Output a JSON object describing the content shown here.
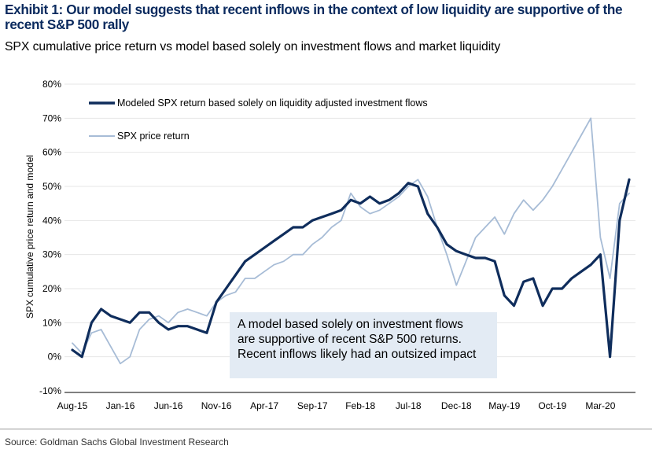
{
  "header": {
    "title": "Exhibit 1: Our model suggests that recent inflows in the context of low liquidity are supportive of the recent S&P 500 rally",
    "subtitle": "SPX cumulative price return vs model based solely on investment flows and market liquidity"
  },
  "footer": {
    "source": "Source: Goldman Sachs Global Investment Research"
  },
  "annotation": {
    "lines": [
      "A model based solely on investment flows",
      "are supportive of recent S&P 500 returns.",
      "Recent inflows likely had an outsized impact"
    ]
  },
  "colors": {
    "model": "#0f2d5c",
    "spx": "#a7bcd6",
    "annotation_bg": "#e3ebf4",
    "title": "#0a2a5e"
  },
  "chart_data": {
    "type": "line",
    "title": "",
    "xlabel": "",
    "ylabel": "SPX cumulative price return and model",
    "ylim": [
      -10,
      80
    ],
    "y_ticks": [
      "-10%",
      "0%",
      "10%",
      "20%",
      "30%",
      "40%",
      "50%",
      "60%",
      "70%",
      "80%"
    ],
    "y_tick_values": [
      -10,
      0,
      10,
      20,
      30,
      40,
      50,
      60,
      70,
      80
    ],
    "x_tick_labels": [
      "Aug-15",
      "Jan-16",
      "Jun-16",
      "Nov-16",
      "Apr-17",
      "Sep-17",
      "Feb-18",
      "Jul-18",
      "Dec-18",
      "May-19",
      "Oct-19",
      "Mar-20"
    ],
    "x_range": [
      "Aug-15",
      "Jun-20"
    ],
    "grid": "horizontal",
    "legend": "top-left",
    "series": [
      {
        "name": "Modeled SPX return based solely on liquidity adjusted investment flows",
        "x": [
          "Aug-15",
          "Sep-15",
          "Oct-15",
          "Nov-15",
          "Dec-15",
          "Jan-16",
          "Feb-16",
          "Mar-16",
          "Apr-16",
          "May-16",
          "Jun-16",
          "Jul-16",
          "Aug-16",
          "Sep-16",
          "Oct-16",
          "Nov-16",
          "Dec-16",
          "Jan-17",
          "Feb-17",
          "Mar-17",
          "Apr-17",
          "May-17",
          "Jun-17",
          "Jul-17",
          "Aug-17",
          "Sep-17",
          "Oct-17",
          "Nov-17",
          "Dec-17",
          "Jan-18",
          "Feb-18",
          "Mar-18",
          "Apr-18",
          "May-18",
          "Jun-18",
          "Jul-18",
          "Aug-18",
          "Sep-18",
          "Oct-18",
          "Nov-18",
          "Dec-18",
          "Jan-19",
          "Feb-19",
          "Mar-19",
          "Apr-19",
          "May-19",
          "Jun-19",
          "Jul-19",
          "Aug-19",
          "Sep-19",
          "Oct-19",
          "Nov-19",
          "Dec-19",
          "Jan-20",
          "Feb-20",
          "Mar-20",
          "Apr-20",
          "May-20",
          "Jun-20"
        ],
        "values": [
          2,
          0,
          10,
          14,
          12,
          11,
          10,
          13,
          13,
          10,
          8,
          9,
          9,
          8,
          7,
          16,
          20,
          24,
          28,
          30,
          32,
          34,
          36,
          38,
          38,
          40,
          41,
          42,
          43,
          46,
          45,
          47,
          45,
          46,
          48,
          51,
          50,
          42,
          38,
          33,
          31,
          30,
          29,
          29,
          28,
          18,
          15,
          22,
          23,
          15,
          20,
          20,
          23,
          25,
          27,
          30,
          0,
          40,
          52
        ]
      },
      {
        "name": "SPX price return",
        "x": [
          "Aug-15",
          "Sep-15",
          "Oct-15",
          "Nov-15",
          "Dec-15",
          "Jan-16",
          "Feb-16",
          "Mar-16",
          "Apr-16",
          "May-16",
          "Jun-16",
          "Jul-16",
          "Aug-16",
          "Sep-16",
          "Oct-16",
          "Nov-16",
          "Dec-16",
          "Jan-17",
          "Feb-17",
          "Mar-17",
          "Apr-17",
          "May-17",
          "Jun-17",
          "Jul-17",
          "Aug-17",
          "Sep-17",
          "Oct-17",
          "Nov-17",
          "Dec-17",
          "Jan-18",
          "Feb-18",
          "Mar-18",
          "Apr-18",
          "May-18",
          "Jun-18",
          "Jul-18",
          "Aug-18",
          "Sep-18",
          "Oct-18",
          "Nov-18",
          "Dec-18",
          "Jan-19",
          "Feb-19",
          "Mar-19",
          "Apr-19",
          "May-19",
          "Jun-19",
          "Jul-19",
          "Aug-19",
          "Sep-19",
          "Oct-19",
          "Nov-19",
          "Dec-19",
          "Jan-20",
          "Feb-20",
          "Mar-20",
          "Apr-20",
          "May-20",
          "Jun-20"
        ],
        "values": [
          4,
          1,
          7,
          8,
          3,
          -2,
          0,
          8,
          11,
          12,
          10,
          13,
          14,
          13,
          12,
          16,
          18,
          19,
          23,
          23,
          25,
          27,
          28,
          30,
          30,
          33,
          35,
          38,
          40,
          48,
          44,
          42,
          43,
          45,
          47,
          50,
          52,
          47,
          38,
          30,
          21,
          28,
          35,
          38,
          41,
          36,
          42,
          46,
          43,
          46,
          50,
          55,
          60,
          65,
          70,
          35,
          23,
          45,
          48
        ]
      }
    ]
  }
}
